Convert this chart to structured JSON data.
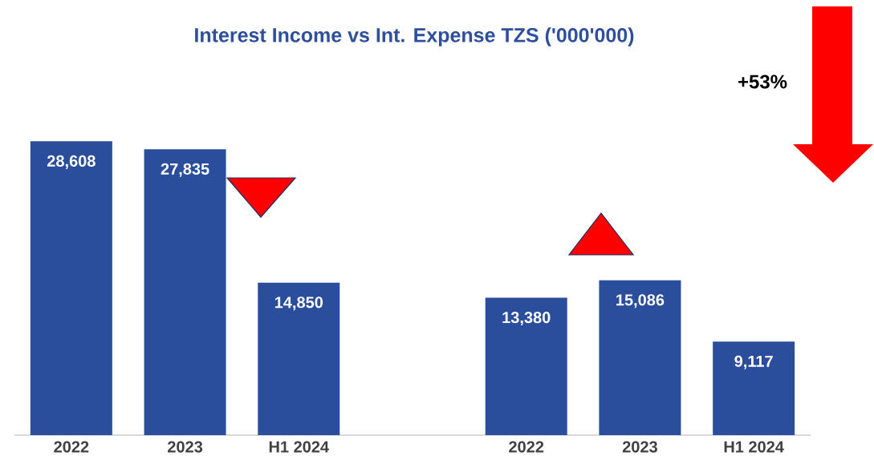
{
  "chart_data": {
    "type": "bar",
    "title": "Interest Income vs Int. Expense TZS ('000'000)",
    "categories": [
      "2022",
      "2023",
      "H1 2024",
      null,
      "2022",
      "2023",
      "H1 2024"
    ],
    "values": [
      28608,
      27835,
      14850,
      null,
      13380,
      15086,
      9117
    ],
    "value_labels": [
      "28,608",
      "27,835",
      "14,850",
      null,
      "13,380",
      "15,086",
      "9,117"
    ],
    "color": "#2a4e9b",
    "annotations": [
      "+53%"
    ]
  }
}
